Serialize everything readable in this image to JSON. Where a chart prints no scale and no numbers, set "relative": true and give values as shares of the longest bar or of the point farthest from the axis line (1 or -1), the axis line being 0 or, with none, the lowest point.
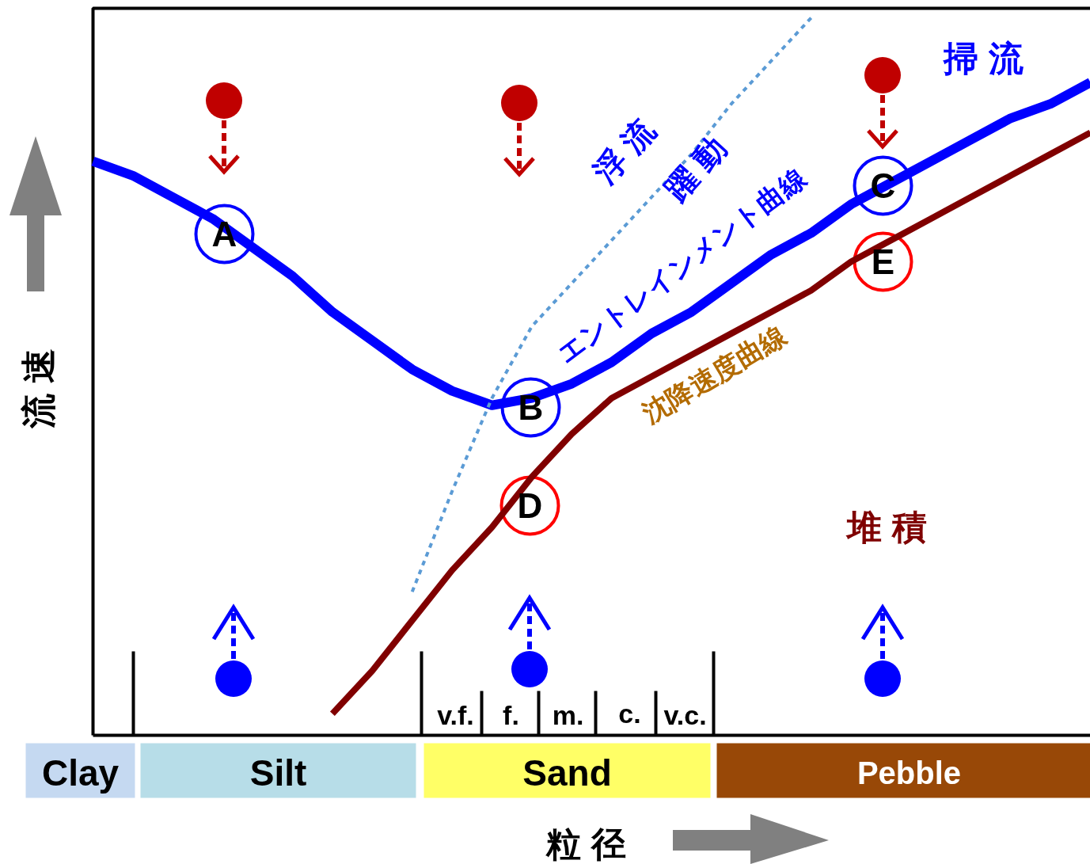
{
  "chart_data": {
    "type": "line",
    "relative": true,
    "xlabel": "粒 径",
    "ylabel": "流 速",
    "legend": false,
    "categories": [
      null,
      null,
      null,
      null,
      null,
      null,
      null,
      null,
      null,
      null,
      null,
      null,
      null,
      null,
      null,
      null,
      null,
      null,
      null,
      null,
      null,
      null,
      null,
      null,
      null,
      null
    ],
    "series": [
      {
        "name": "エントレインメント曲線",
        "color": "#0000ff",
        "values": [
          0.8,
          0.78,
          0.75,
          0.72,
          0.68,
          0.64,
          0.59,
          0.55,
          0.51,
          0.48,
          0.46,
          0.47,
          0.49,
          0.52,
          0.56,
          0.59,
          0.63,
          0.67,
          0.7,
          0.74,
          0.77,
          0.8,
          0.83,
          0.86,
          0.88,
          0.91
        ]
      },
      {
        "name": "沈降速度曲線",
        "color": "#800000",
        "values": [
          null,
          null,
          null,
          null,
          null,
          null,
          0.03,
          0.09,
          0.16,
          0.23,
          0.29,
          0.36,
          0.42,
          0.47,
          0.5,
          0.53,
          0.56,
          0.59,
          0.62,
          0.66,
          0.69,
          0.72,
          0.75,
          0.78,
          0.81,
          0.84
        ]
      },
      {
        "color": "#5b9bd5",
        "line_style": "dashed",
        "values": [
          null,
          null,
          null,
          null,
          null,
          null,
          null,
          null,
          0.2,
          0.34,
          0.47,
          0.57,
          0.63,
          0.69,
          0.75,
          0.81,
          0.88,
          0.94,
          1.0,
          null,
          null,
          null,
          null,
          null,
          null,
          null
        ]
      }
    ],
    "annotations": [
      "A",
      "B",
      "C",
      "D",
      "E",
      "掃 流",
      "浮 流",
      "躍 動",
      "堆 積",
      "v.f.",
      "f.",
      "m.",
      "c.",
      "v.c.",
      "Clay",
      "Silt",
      "Sand",
      "Pebble"
    ]
  }
}
